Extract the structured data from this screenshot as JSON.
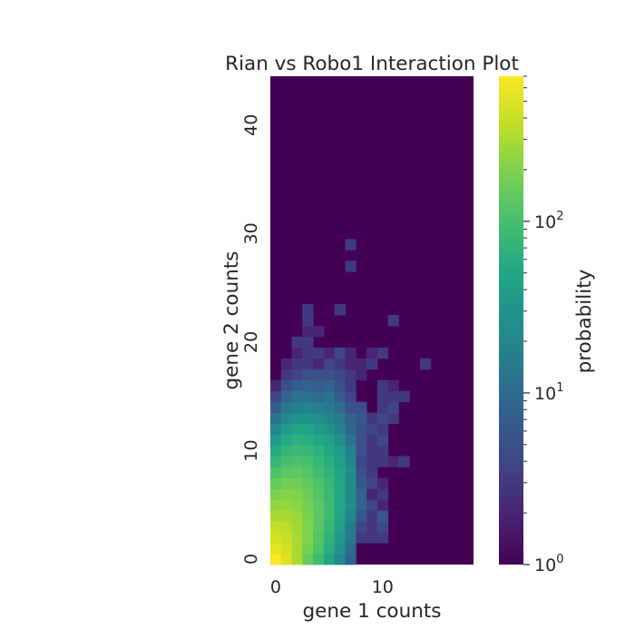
{
  "chart_data": {
    "type": "heatmap",
    "title": "Rian vs Robo1 Interaction Plot",
    "xlabel": "gene 1 counts",
    "ylabel": "gene 2 counts",
    "xlim": [
      0,
      18
    ],
    "ylim": [
      0,
      44
    ],
    "x_ticks": [
      0,
      10
    ],
    "y_ticks": [
      0,
      10,
      20,
      30,
      40
    ],
    "colorbar": {
      "label": "probability",
      "scale": "log",
      "range": [
        1,
        700
      ],
      "colormap": "viridis",
      "tick_labels": [
        {
          "value": 1,
          "base": "10",
          "exp": "0"
        },
        {
          "value": 10,
          "base": "10",
          "exp": "1"
        },
        {
          "value": 100,
          "base": "10",
          "exp": "2"
        }
      ]
    },
    "grid": false,
    "background_value": 1,
    "cells": [
      [
        0,
        0,
        700
      ],
      [
        1,
        0,
        500
      ],
      [
        2,
        0,
        300
      ],
      [
        3,
        0,
        150
      ],
      [
        4,
        0,
        90
      ],
      [
        5,
        0,
        45
      ],
      [
        6,
        0,
        20
      ],
      [
        7,
        0,
        8
      ],
      [
        0,
        1,
        550
      ],
      [
        1,
        1,
        450
      ],
      [
        2,
        1,
        300
      ],
      [
        3,
        1,
        180
      ],
      [
        4,
        1,
        110
      ],
      [
        5,
        1,
        60
      ],
      [
        6,
        1,
        30
      ],
      [
        7,
        1,
        10
      ],
      [
        0,
        2,
        450
      ],
      [
        1,
        2,
        400
      ],
      [
        2,
        2,
        300
      ],
      [
        3,
        2,
        200
      ],
      [
        4,
        2,
        120
      ],
      [
        5,
        2,
        70
      ],
      [
        6,
        2,
        35
      ],
      [
        7,
        2,
        15
      ],
      [
        8,
        2,
        3
      ],
      [
        9,
        2,
        3
      ],
      [
        10,
        2,
        3
      ],
      [
        0,
        3,
        380
      ],
      [
        1,
        3,
        350
      ],
      [
        2,
        3,
        280
      ],
      [
        3,
        3,
        200
      ],
      [
        4,
        3,
        130
      ],
      [
        5,
        3,
        80
      ],
      [
        6,
        3,
        40
      ],
      [
        7,
        3,
        15
      ],
      [
        8,
        3,
        4
      ],
      [
        9,
        3,
        3
      ],
      [
        10,
        3,
        4
      ],
      [
        0,
        4,
        300
      ],
      [
        1,
        4,
        300
      ],
      [
        2,
        4,
        260
      ],
      [
        3,
        4,
        190
      ],
      [
        4,
        4,
        130
      ],
      [
        5,
        4,
        85
      ],
      [
        6,
        4,
        45
      ],
      [
        7,
        4,
        20
      ],
      [
        8,
        4,
        6
      ],
      [
        9,
        4,
        3
      ],
      [
        10,
        4,
        6
      ],
      [
        0,
        5,
        240
      ],
      [
        1,
        5,
        250
      ],
      [
        2,
        5,
        230
      ],
      [
        3,
        5,
        180
      ],
      [
        4,
        5,
        130
      ],
      [
        5,
        5,
        90
      ],
      [
        6,
        5,
        50
      ],
      [
        7,
        5,
        25
      ],
      [
        8,
        5,
        8
      ],
      [
        9,
        5,
        4
      ],
      [
        10,
        5,
        2
      ],
      [
        0,
        6,
        190
      ],
      [
        1,
        6,
        210
      ],
      [
        2,
        6,
        200
      ],
      [
        3,
        6,
        160
      ],
      [
        4,
        6,
        120
      ],
      [
        5,
        6,
        85
      ],
      [
        6,
        6,
        50
      ],
      [
        7,
        6,
        25
      ],
      [
        8,
        6,
        8
      ],
      [
        9,
        6,
        2
      ],
      [
        10,
        6,
        3
      ],
      [
        0,
        7,
        150
      ],
      [
        1,
        7,
        170
      ],
      [
        2,
        7,
        170
      ],
      [
        3,
        7,
        140
      ],
      [
        4,
        7,
        110
      ],
      [
        5,
        7,
        80
      ],
      [
        6,
        7,
        50
      ],
      [
        7,
        7,
        25
      ],
      [
        8,
        7,
        6
      ],
      [
        9,
        7,
        4
      ],
      [
        10,
        7,
        2
      ],
      [
        0,
        8,
        110
      ],
      [
        1,
        8,
        130
      ],
      [
        2,
        8,
        140
      ],
      [
        3,
        8,
        120
      ],
      [
        4,
        8,
        95
      ],
      [
        5,
        8,
        70
      ],
      [
        6,
        8,
        45
      ],
      [
        7,
        8,
        25
      ],
      [
        8,
        8,
        5
      ],
      [
        9,
        8,
        3
      ],
      [
        0,
        9,
        80
      ],
      [
        1,
        9,
        100
      ],
      [
        2,
        9,
        110
      ],
      [
        3,
        9,
        100
      ],
      [
        4,
        9,
        80
      ],
      [
        5,
        9,
        60
      ],
      [
        6,
        9,
        40
      ],
      [
        7,
        9,
        20
      ],
      [
        8,
        9,
        4
      ],
      [
        9,
        9,
        3
      ],
      [
        10,
        9,
        3
      ],
      [
        11,
        9,
        2
      ],
      [
        12,
        9,
        3
      ],
      [
        0,
        10,
        55
      ],
      [
        1,
        10,
        75
      ],
      [
        2,
        10,
        85
      ],
      [
        3,
        10,
        80
      ],
      [
        4,
        10,
        65
      ],
      [
        5,
        10,
        50
      ],
      [
        6,
        10,
        35
      ],
      [
        7,
        10,
        18
      ],
      [
        8,
        10,
        5
      ],
      [
        9,
        10,
        3
      ],
      [
        10,
        10,
        3
      ],
      [
        0,
        11,
        35
      ],
      [
        1,
        11,
        55
      ],
      [
        2,
        11,
        65
      ],
      [
        3,
        11,
        60
      ],
      [
        4,
        11,
        50
      ],
      [
        5,
        11,
        40
      ],
      [
        6,
        11,
        25
      ],
      [
        7,
        11,
        12
      ],
      [
        8,
        11,
        5
      ],
      [
        9,
        11,
        3
      ],
      [
        10,
        11,
        4
      ],
      [
        0,
        12,
        20
      ],
      [
        1,
        12,
        35
      ],
      [
        2,
        12,
        45
      ],
      [
        3,
        12,
        45
      ],
      [
        4,
        12,
        35
      ],
      [
        5,
        12,
        30
      ],
      [
        6,
        12,
        18
      ],
      [
        7,
        12,
        9
      ],
      [
        8,
        12,
        5
      ],
      [
        9,
        12,
        4
      ],
      [
        10,
        12,
        3
      ],
      [
        0,
        13,
        12
      ],
      [
        1,
        13,
        22
      ],
      [
        2,
        13,
        30
      ],
      [
        3,
        13,
        30
      ],
      [
        4,
        13,
        25
      ],
      [
        5,
        13,
        20
      ],
      [
        6,
        13,
        15
      ],
      [
        7,
        13,
        8
      ],
      [
        8,
        13,
        6
      ],
      [
        9,
        13,
        3
      ],
      [
        10,
        13,
        4
      ],
      [
        11,
        13,
        3
      ],
      [
        0,
        14,
        7
      ],
      [
        1,
        14,
        14
      ],
      [
        2,
        14,
        18
      ],
      [
        3,
        14,
        20
      ],
      [
        4,
        14,
        16
      ],
      [
        5,
        14,
        15
      ],
      [
        6,
        14,
        10
      ],
      [
        7,
        14,
        5
      ],
      [
        8,
        14,
        5
      ],
      [
        10,
        14,
        3
      ],
      [
        11,
        14,
        4
      ],
      [
        0,
        15,
        4
      ],
      [
        1,
        15,
        8
      ],
      [
        2,
        15,
        12
      ],
      [
        3,
        15,
        12
      ],
      [
        4,
        15,
        10
      ],
      [
        5,
        15,
        12
      ],
      [
        6,
        15,
        7
      ],
      [
        7,
        15,
        4
      ],
      [
        10,
        15,
        3
      ],
      [
        11,
        15,
        3
      ],
      [
        12,
        15,
        3
      ],
      [
        0,
        16,
        2
      ],
      [
        1,
        16,
        5
      ],
      [
        2,
        16,
        7
      ],
      [
        3,
        16,
        8
      ],
      [
        4,
        16,
        7
      ],
      [
        5,
        16,
        8
      ],
      [
        6,
        16,
        5
      ],
      [
        7,
        16,
        3
      ],
      [
        10,
        16,
        3
      ],
      [
        11,
        16,
        2
      ],
      [
        1,
        17,
        3
      ],
      [
        2,
        17,
        4
      ],
      [
        3,
        17,
        5
      ],
      [
        4,
        17,
        5
      ],
      [
        5,
        17,
        5
      ],
      [
        6,
        17,
        4
      ],
      [
        7,
        17,
        3
      ],
      [
        8,
        17,
        2
      ],
      [
        1,
        18,
        2
      ],
      [
        2,
        18,
        3
      ],
      [
        3,
        18,
        3
      ],
      [
        4,
        18,
        2
      ],
      [
        5,
        18,
        4
      ],
      [
        6,
        18,
        3
      ],
      [
        7,
        18,
        2
      ],
      [
        8,
        18,
        2
      ],
      [
        9,
        18,
        3
      ],
      [
        14,
        18,
        3
      ],
      [
        2,
        19,
        2
      ],
      [
        3,
        19,
        3
      ],
      [
        4,
        19,
        3
      ],
      [
        5,
        19,
        2
      ],
      [
        6,
        19,
        4
      ],
      [
        7,
        19,
        2
      ],
      [
        9,
        19,
        2
      ],
      [
        10,
        19,
        3
      ],
      [
        2,
        20,
        3
      ],
      [
        3,
        20,
        3
      ],
      [
        3,
        21,
        2
      ],
      [
        4,
        21,
        2
      ],
      [
        3,
        22,
        3
      ],
      [
        11,
        22,
        3
      ],
      [
        3,
        23,
        3
      ],
      [
        6,
        23,
        3
      ],
      [
        7,
        27,
        3
      ],
      [
        7,
        29,
        3
      ]
    ]
  }
}
